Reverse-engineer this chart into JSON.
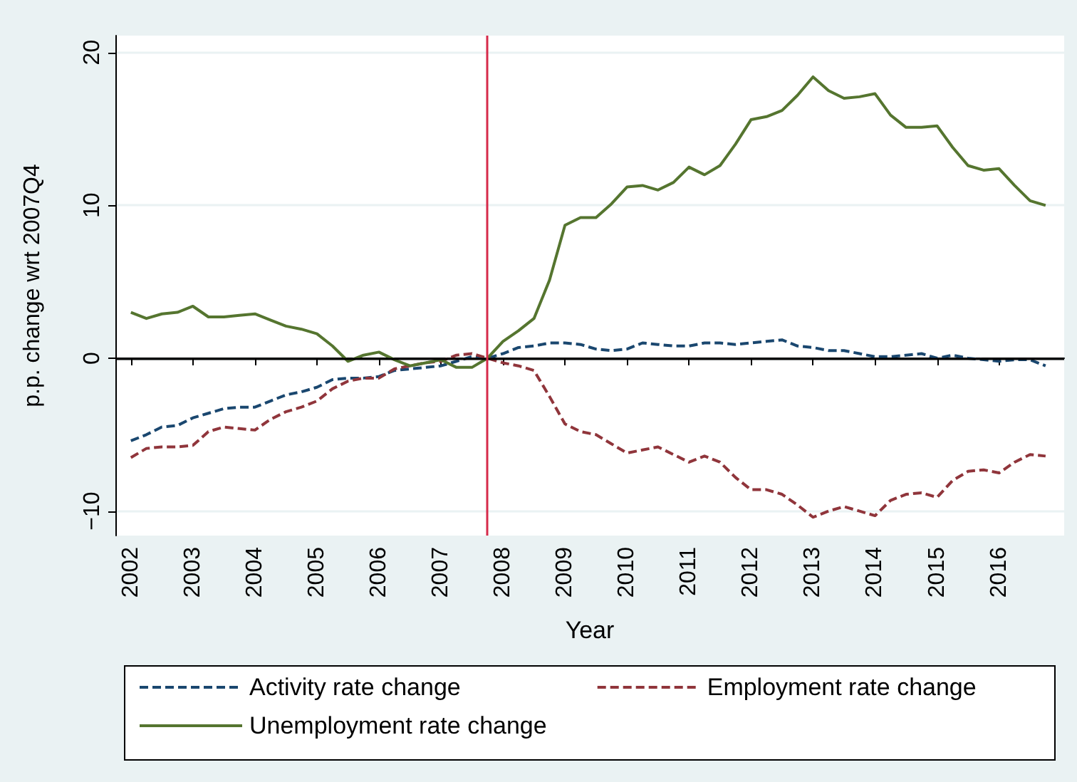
{
  "chart_data": {
    "type": "line",
    "xlabel": "Year",
    "ylabel": "p.p. change wrt 2007Q4",
    "x": [
      2002,
      2002.25,
      2002.5,
      2002.75,
      2003,
      2003.25,
      2003.5,
      2003.75,
      2004,
      2004.25,
      2004.5,
      2004.75,
      2005,
      2005.25,
      2005.5,
      2005.75,
      2006,
      2006.25,
      2006.5,
      2006.75,
      2007,
      2007.25,
      2007.5,
      2007.75,
      2008,
      2008.25,
      2008.5,
      2008.75,
      2009,
      2009.25,
      2009.5,
      2009.75,
      2010,
      2010.25,
      2010.5,
      2010.75,
      2011,
      2011.25,
      2011.5,
      2011.75,
      2012,
      2012.25,
      2012.5,
      2012.75,
      2013,
      2013.25,
      2013.5,
      2013.75,
      2014,
      2014.25,
      2014.5,
      2014.75,
      2015,
      2015.25,
      2015.5,
      2015.75,
      2016,
      2016.25,
      2016.5,
      2016.75
    ],
    "series": [
      {
        "name": "Activity rate change",
        "color": "#1a476f",
        "line_style": "dashed",
        "values": [
          -5.4,
          -5.0,
          -4.5,
          -4.4,
          -3.9,
          -3.6,
          -3.3,
          -3.2,
          -3.2,
          -2.8,
          -2.4,
          -2.2,
          -1.9,
          -1.4,
          -1.3,
          -1.3,
          -1.2,
          -0.8,
          -0.7,
          -0.6,
          -0.5,
          -0.2,
          0.1,
          0,
          0.3,
          0.7,
          0.8,
          1.0,
          1.0,
          0.9,
          0.6,
          0.5,
          0.6,
          1.0,
          0.9,
          0.8,
          0.8,
          1.0,
          1.0,
          0.9,
          1.0,
          1.1,
          1.2,
          0.8,
          0.7,
          0.5,
          0.5,
          0.3,
          0.1,
          0.1,
          0.2,
          0.3,
          0,
          0.2,
          0,
          -0.1,
          -0.2,
          -0.1,
          -0.1,
          -0.5
        ]
      },
      {
        "name": "Employment rate change",
        "color": "#90353b",
        "line_style": "dashed",
        "values": [
          -6.5,
          -5.9,
          -5.8,
          -5.8,
          -5.7,
          -4.8,
          -4.5,
          -4.6,
          -4.7,
          -4.0,
          -3.5,
          -3.2,
          -2.8,
          -2.0,
          -1.5,
          -1.3,
          -1.3,
          -0.7,
          -0.5,
          -0.3,
          -0.2,
          0.2,
          0.3,
          0,
          -0.3,
          -0.5,
          -0.8,
          -2.5,
          -4.3,
          -4.8,
          -5.0,
          -5.6,
          -6.2,
          -6.0,
          -5.8,
          -6.3,
          -6.8,
          -6.4,
          -6.8,
          -7.8,
          -8.6,
          -8.6,
          -8.9,
          -9.6,
          -10.4,
          -10.0,
          -9.7,
          -10.0,
          -10.3,
          -9.3,
          -8.9,
          -8.8,
          -9.1,
          -8.0,
          -7.4,
          -7.3,
          -7.5,
          -6.8,
          -6.3,
          -6.4
        ]
      },
      {
        "name": "Unemployment rate change",
        "color": "#55752f",
        "line_style": "solid",
        "values": [
          3.0,
          2.6,
          2.9,
          3.0,
          3.4,
          2.7,
          2.7,
          2.8,
          2.9,
          2.5,
          2.1,
          1.9,
          1.6,
          0.8,
          -0.2,
          0.2,
          0.4,
          -0.1,
          -0.5,
          -0.3,
          -0.1,
          -0.6,
          -0.6,
          0,
          1.1,
          1.8,
          2.6,
          5.1,
          8.7,
          9.2,
          9.2,
          10.1,
          11.2,
          11.3,
          11.0,
          11.5,
          12.5,
          12.0,
          12.6,
          14.0,
          15.6,
          15.8,
          16.2,
          17.2,
          18.4,
          17.5,
          17.0,
          17.1,
          17.3,
          15.9,
          15.1,
          15.1,
          15.2,
          13.8,
          12.6,
          12.3,
          12.4,
          11.3,
          10.3,
          10.0
        ]
      }
    ],
    "xlim": [
      2001.75,
      2017.05
    ],
    "xticks": [
      2002,
      2003,
      2004,
      2005,
      2006,
      2007,
      2008,
      2009,
      2010,
      2011,
      2012,
      2013,
      2014,
      2015,
      2016
    ],
    "ylim": [
      -11.6,
      21.1
    ],
    "yticks": [
      {
        "value": -10,
        "label": "−10"
      },
      0,
      10,
      20
    ],
    "ref_lines": [
      {
        "axis": "y",
        "value": 0,
        "color": "#000000",
        "line_style": "solid"
      },
      {
        "axis": "x",
        "value": 2007.75,
        "color": "#d62a4a",
        "line_style": "solid"
      }
    ],
    "grid": "y",
    "legend": "bottom",
    "marker": "none"
  }
}
